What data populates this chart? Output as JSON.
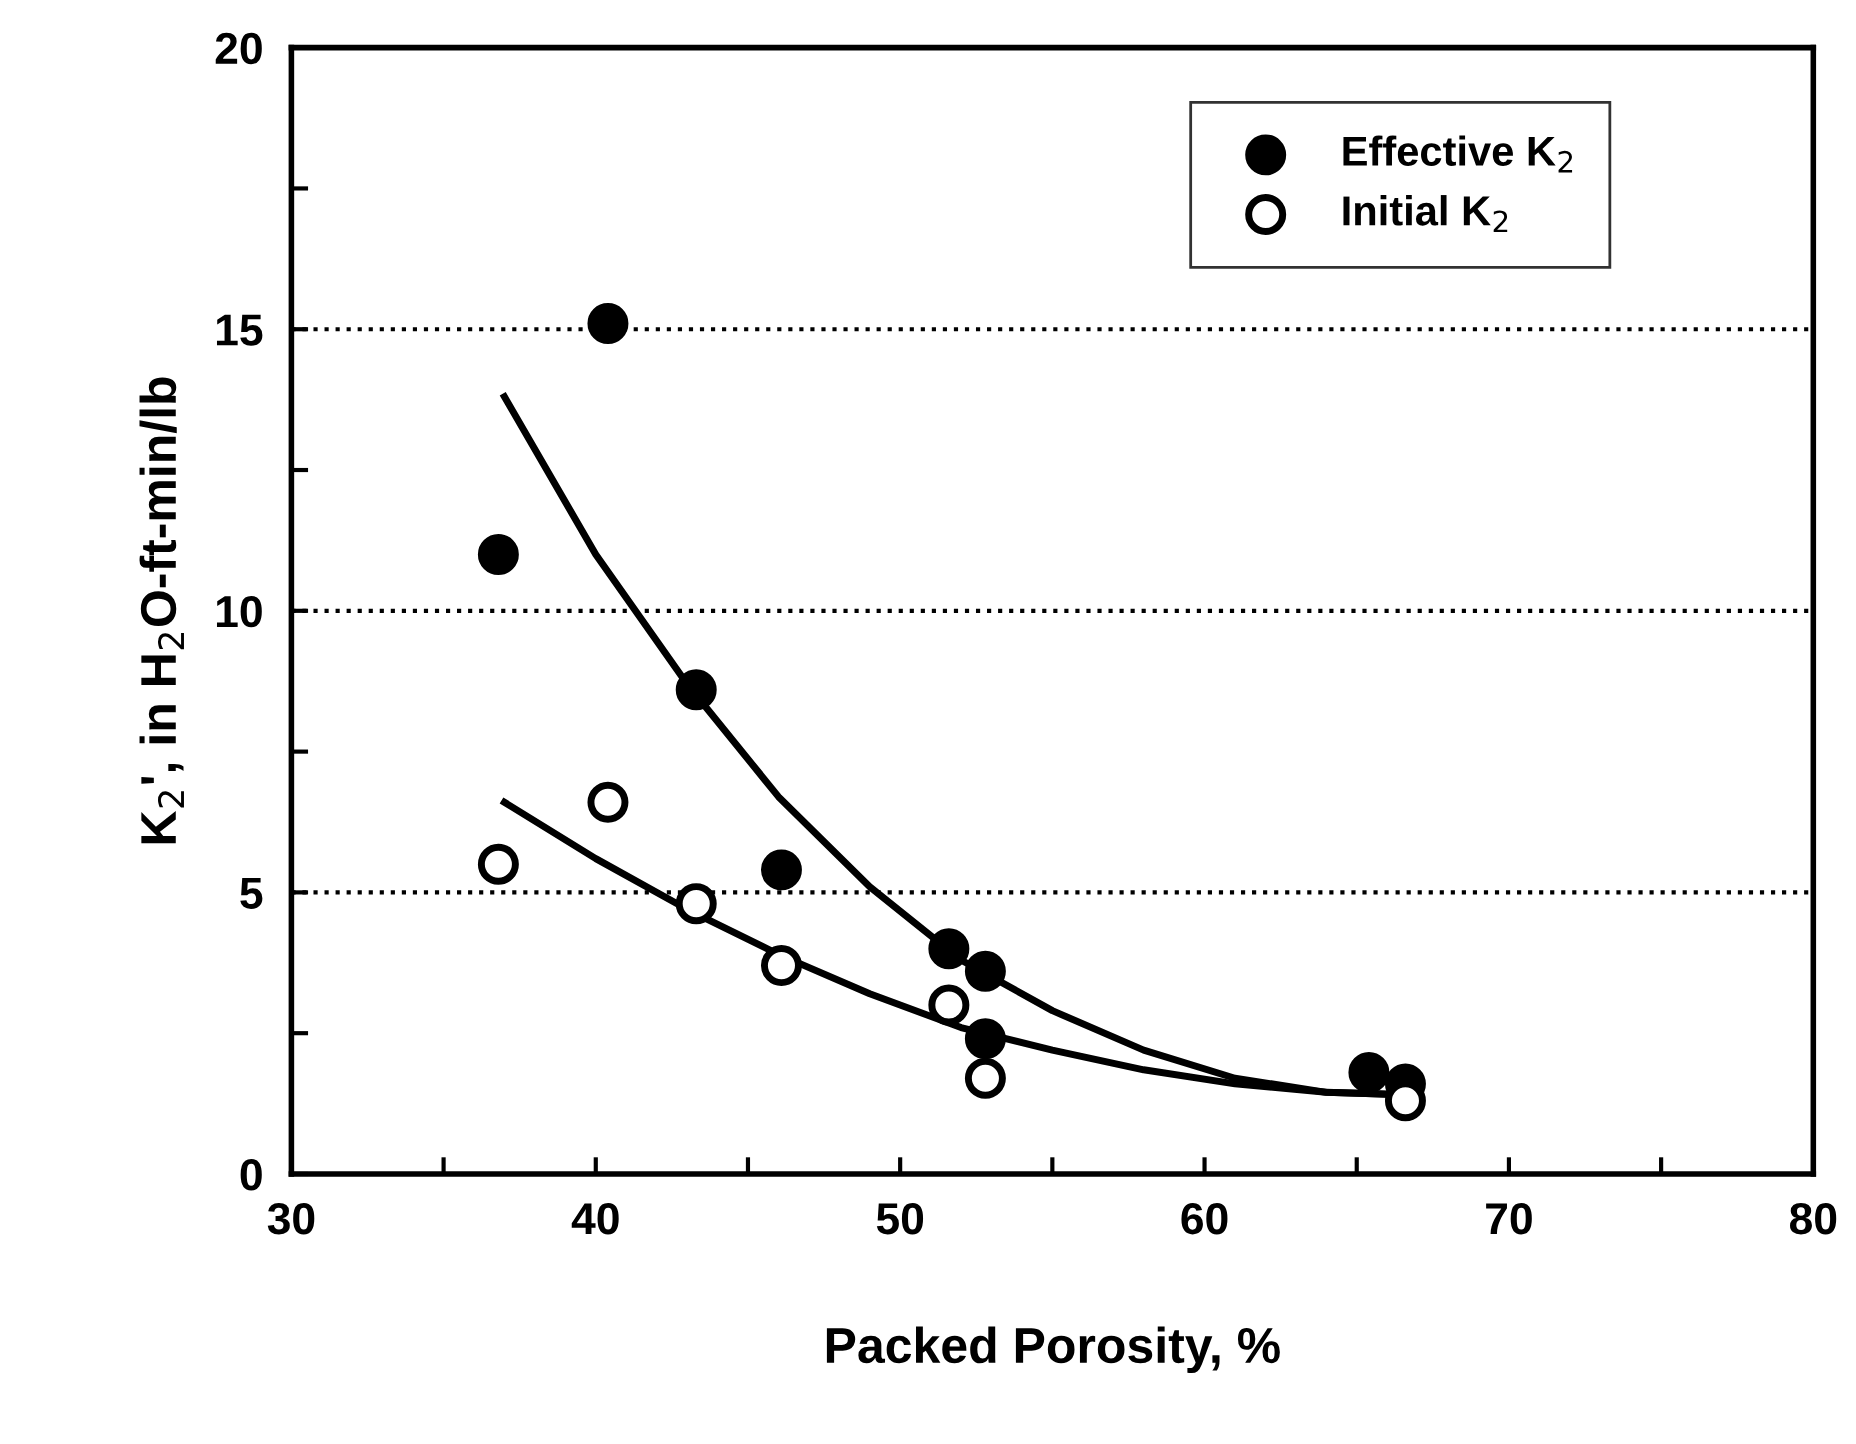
{
  "chart_data": {
    "type": "scatter",
    "xlabel": "Packed Porosity, %",
    "ylabel": "K$_{2}$', in H$_{2}$O-ft-min/lb",
    "xlim": [
      30,
      80
    ],
    "ylim": [
      0,
      20
    ],
    "xticks": [
      30,
      {
        "value": 35,
        "label": null
      },
      40,
      {
        "value": 45,
        "label": null
      },
      50,
      {
        "value": 55,
        "label": null
      },
      60,
      {
        "value": 65,
        "label": null
      },
      70,
      {
        "value": 75,
        "label": null
      },
      80
    ],
    "yticks": [
      0,
      {
        "value": 2.5,
        "label": null
      },
      5,
      {
        "value": 7.5,
        "label": null
      },
      10,
      {
        "value": 12.5,
        "label": null
      },
      15,
      {
        "value": 17.5,
        "label": null
      },
      20
    ],
    "grid": "y",
    "legend": "top right",
    "series": [
      {
        "name": "Effective K$_{2}$",
        "color": "#000000",
        "marker": "circle",
        "x": [
          36.8,
          40.4,
          43.3,
          46.1,
          51.6,
          52.8,
          52.8,
          65.4,
          66.6
        ],
        "values": [
          11.0,
          15.1,
          8.6,
          5.4,
          4.0,
          3.6,
          2.4,
          1.8,
          1.6
        ]
      },
      {
        "name": "Initial K$_{2}$",
        "color": "#000000",
        "marker": "circle",
        "x": [
          36.8,
          40.4,
          43.3,
          46.1,
          51.6,
          52.8,
          66.6
        ],
        "values": [
          5.5,
          6.6,
          4.8,
          3.7,
          3.0,
          1.7,
          1.3
        ]
      },
      {
        "type": "line",
        "color": "#000000",
        "line_style": "solid",
        "x": [
          37,
          40,
          43,
          46,
          49,
          52,
          55,
          58,
          61,
          64,
          67
        ],
        "values": [
          13.8,
          11.0,
          8.7,
          6.7,
          5.1,
          3.8,
          2.9,
          2.2,
          1.7,
          1.45,
          1.4
        ]
      },
      {
        "type": "line",
        "color": "#000000",
        "line_style": "solid",
        "x": [
          37,
          40,
          43,
          46,
          49,
          52,
          55,
          58,
          61,
          64,
          67
        ],
        "values": [
          6.6,
          5.6,
          4.7,
          3.9,
          3.2,
          2.6,
          2.2,
          1.85,
          1.6,
          1.45,
          1.4
        ]
      }
    ]
  }
}
